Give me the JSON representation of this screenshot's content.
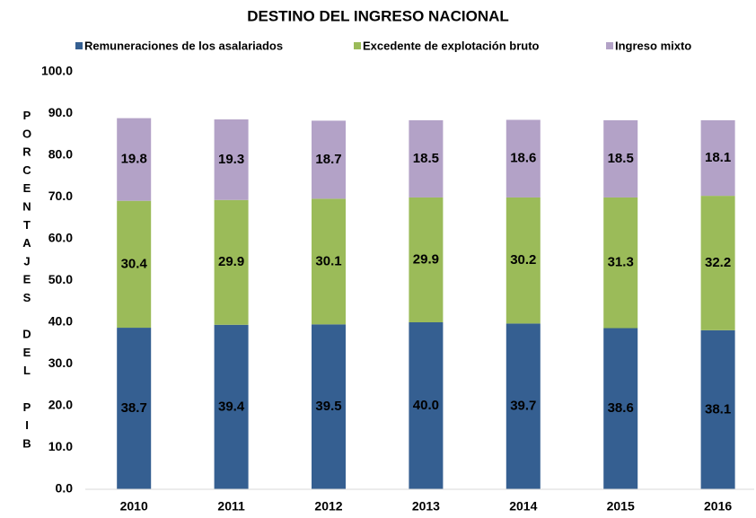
{
  "chart_data": {
    "type": "stacked_bar",
    "title": "DESTINO DEL INGRESO NACIONAL",
    "y_label": "PORCENTAJES DEL PIB",
    "categories": [
      "2010",
      "2011",
      "2012",
      "2013",
      "2014",
      "2015",
      "2016"
    ],
    "series": [
      {
        "name": "Remuneraciones de los asalariados",
        "color": "#355f91",
        "values": [
          38.7,
          39.4,
          39.5,
          40.0,
          39.7,
          38.6,
          38.1
        ],
        "value_labels": [
          "38.7",
          "39.4",
          "39.5",
          "40.0",
          "39.7",
          "38.6",
          "38.1"
        ]
      },
      {
        "name": "Excedente de explotación bruto",
        "color": "#9bbb59",
        "values": [
          30.4,
          29.9,
          30.1,
          29.9,
          30.2,
          31.3,
          32.2
        ],
        "value_labels": [
          "30.4",
          "29.9",
          "30.1",
          "29.9",
          "30.2",
          "31.3",
          "32.2"
        ]
      },
      {
        "name": "Ingreso mixto",
        "color": "#b3a2c7",
        "values": [
          19.8,
          19.3,
          18.7,
          18.5,
          18.6,
          18.5,
          18.1
        ],
        "value_labels": [
          "19.8",
          "19.3",
          "18.7",
          "18.5",
          "18.6",
          "18.5",
          "18.1"
        ]
      }
    ],
    "ylim": [
      0,
      100
    ],
    "yticks": [
      {
        "value": 0,
        "label": "0.0"
      },
      {
        "value": 10,
        "label": "10.0"
      },
      {
        "value": 20,
        "label": "20.0"
      },
      {
        "value": 30,
        "label": "30.0"
      },
      {
        "value": 40,
        "label": "40.0"
      },
      {
        "value": 50,
        "label": "50.0"
      },
      {
        "value": 60,
        "label": "60.0"
      },
      {
        "value": 70,
        "label": "70.0"
      },
      {
        "value": 80,
        "label": "80.0"
      },
      {
        "value": 90,
        "label": "90.0"
      },
      {
        "value": 100,
        "label": "100.0"
      }
    ],
    "grid": false,
    "legend": "top"
  }
}
